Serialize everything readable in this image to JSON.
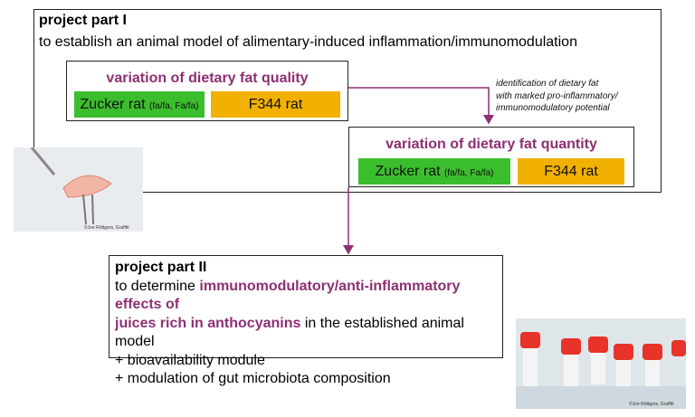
{
  "part1": {
    "title": "project part I",
    "subtitle": "to establish an animal model of alimentary-induced inflammation/immunomodulation",
    "quality": {
      "title": "variation of dietary fat quality",
      "zucker": "Zucker rat",
      "zucker_note": "(fa/fa, Fa/fa)",
      "f344": "F344 rat"
    },
    "annotation": [
      "identification of dietary fat",
      "with marked pro-inflammatory/",
      "immunomodulatory potential"
    ],
    "quantity": {
      "title": "variation of dietary fat quantity",
      "zucker": "Zucker rat",
      "zucker_note": "(fa/fa, Fa/fa)",
      "f344": "F344 rat"
    }
  },
  "part2": {
    "title": "project part II",
    "line1_a": "to determine",
    "line1_b": "immunomodulatory/anti-inflammatory effects of",
    "line2_a": "juices rich in anthocyanins",
    "line2_b": "in the established animal model",
    "line3": "+ bioavailability module",
    "line4": "+ modulation of gut microbiota composition"
  },
  "image_credits": [
    "©Joe Röttgers, Graffiti",
    "©Joe Röttgers, Graffiti"
  ]
}
